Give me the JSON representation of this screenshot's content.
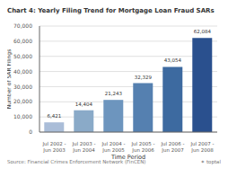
{
  "chart_data": {
    "type": "bar",
    "title": "Chart 4: Yearly Filing Trend for Mortgage Loan Fraud SARs",
    "categories": [
      "Jul 2002 -\nJun 2003",
      "Jul 2003 -\nJun 2004",
      "Jul 2004 -\nJun 2005",
      "Jul 2005 -\nJun 2006",
      "Jul 2006 -\nJun 2007",
      "Jul 2007 -\nJun 2008"
    ],
    "values": [
      6421,
      14404,
      21243,
      32329,
      43054,
      62084
    ],
    "value_labels": [
      "6,421",
      "14,404",
      "21,243",
      "32,329",
      "43,054",
      "62,084"
    ],
    "data_labels": true,
    "colors": [
      "#aabdd8",
      "#8aaac8",
      "#6d95be",
      "#5580b0",
      "#3d6aa0",
      "#2a508e"
    ],
    "xlabel": "Time Period",
    "ylabel": "Number of SAR Filings",
    "ylim": [
      0,
      70000
    ],
    "yticks": [
      0,
      {
        "value": 10000,
        "label": "10,000"
      },
      {
        "value": 20000,
        "label": "20,000"
      },
      {
        "value": 30000,
        "label": "30,000"
      },
      {
        "value": 40000,
        "label": "40,000"
      },
      {
        "value": 50000,
        "label": "50,000"
      },
      {
        "value": 60000,
        "label": "60,000"
      },
      {
        "value": 70000,
        "label": "70,000"
      }
    ],
    "grid": true,
    "annotations": [
      "Source: Financial Crimes Enforcement Network (FinCEN)",
      "✶ toptal"
    ]
  }
}
